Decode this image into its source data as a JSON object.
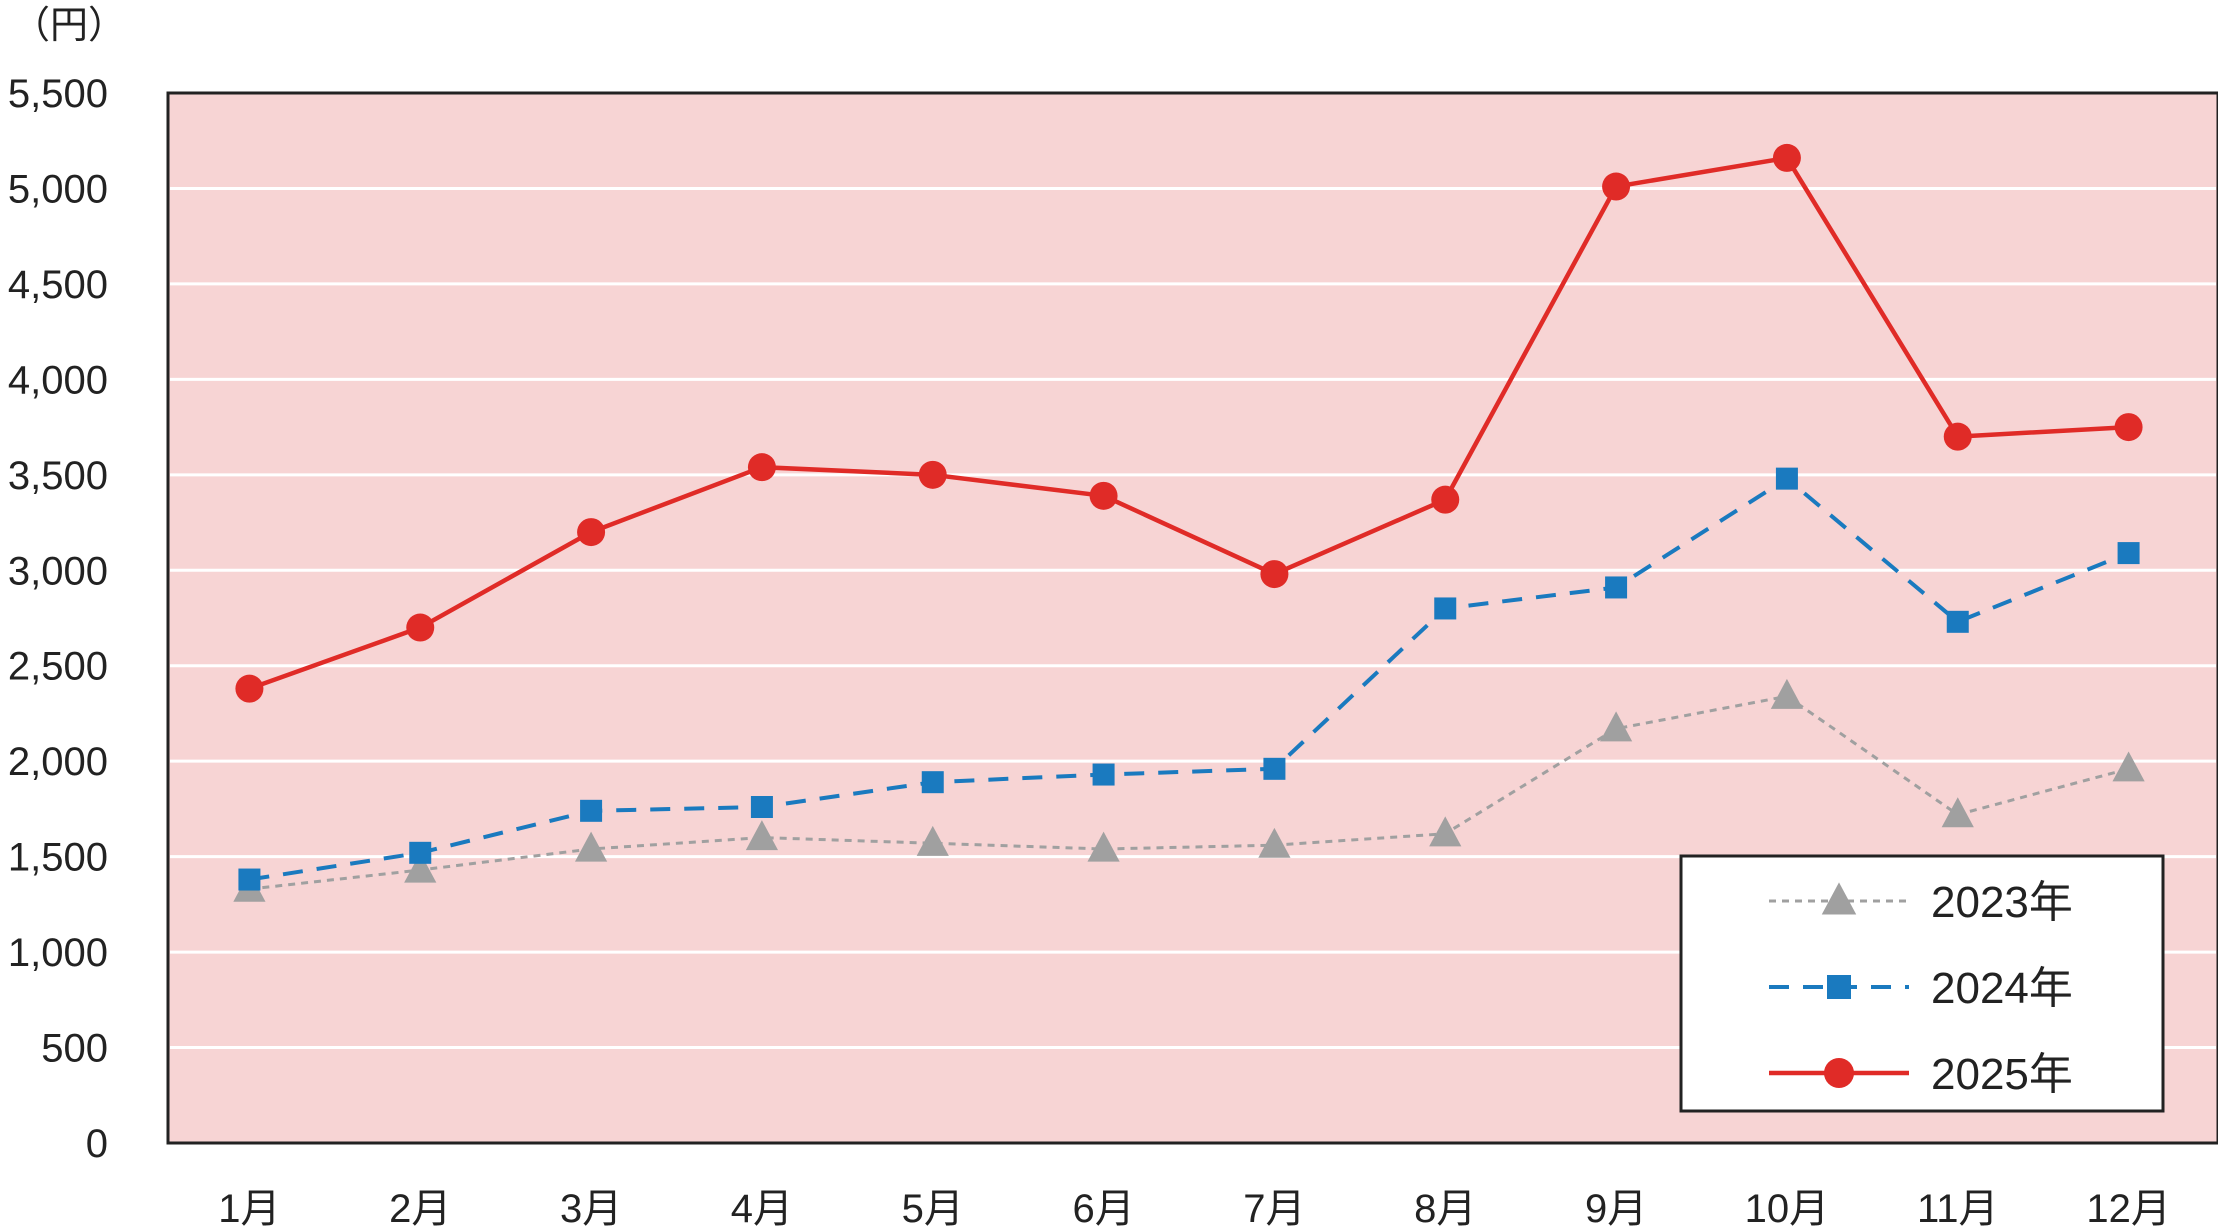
{
  "chart_data": {
    "type": "line",
    "unit_label": "（円）",
    "categories": [
      "1月",
      "2月",
      "3月",
      "4月",
      "5月",
      "6月",
      "7月",
      "8月",
      "9月",
      "10月",
      "11月",
      "12月"
    ],
    "ylim": [
      0,
      5500
    ],
    "yticks": [
      {
        "value": 0,
        "label": "0"
      },
      {
        "value": 500,
        "label": "500"
      },
      {
        "value": 1000,
        "label": "1,000"
      },
      {
        "value": 1500,
        "label": "1,500"
      },
      {
        "value": 2000,
        "label": "2,000"
      },
      {
        "value": 2500,
        "label": "2,500"
      },
      {
        "value": 3000,
        "label": "3,000"
      },
      {
        "value": 3500,
        "label": "3,500"
      },
      {
        "value": 4000,
        "label": "4,000"
      },
      {
        "value": 4500,
        "label": "4,500"
      },
      {
        "value": 5000,
        "label": "5,000"
      },
      {
        "value": 5500,
        "label": "5,500"
      }
    ],
    "grid": true,
    "legend_position": "bottom-right",
    "plot_background": "#f7d4d4",
    "series": [
      {
        "name": "2023年",
        "color": "#a0a0a0",
        "marker": "triangle",
        "line": "dotted",
        "values": [
          1330,
          1430,
          1540,
          1600,
          1570,
          1540,
          1560,
          1620,
          2170,
          2340,
          1720,
          1960
        ]
      },
      {
        "name": "2024年",
        "color": "#1a7abf",
        "marker": "square",
        "line": "dashed",
        "values": [
          1380,
          1520,
          1740,
          1760,
          1890,
          1930,
          1960,
          2800,
          2910,
          3480,
          2730,
          3090
        ]
      },
      {
        "name": "2025年",
        "color": "#e02b27",
        "marker": "circle",
        "line": "solid",
        "values": [
          2380,
          2700,
          3200,
          3540,
          3500,
          3390,
          2980,
          3370,
          5010,
          5160,
          3700,
          3750
        ]
      }
    ]
  }
}
